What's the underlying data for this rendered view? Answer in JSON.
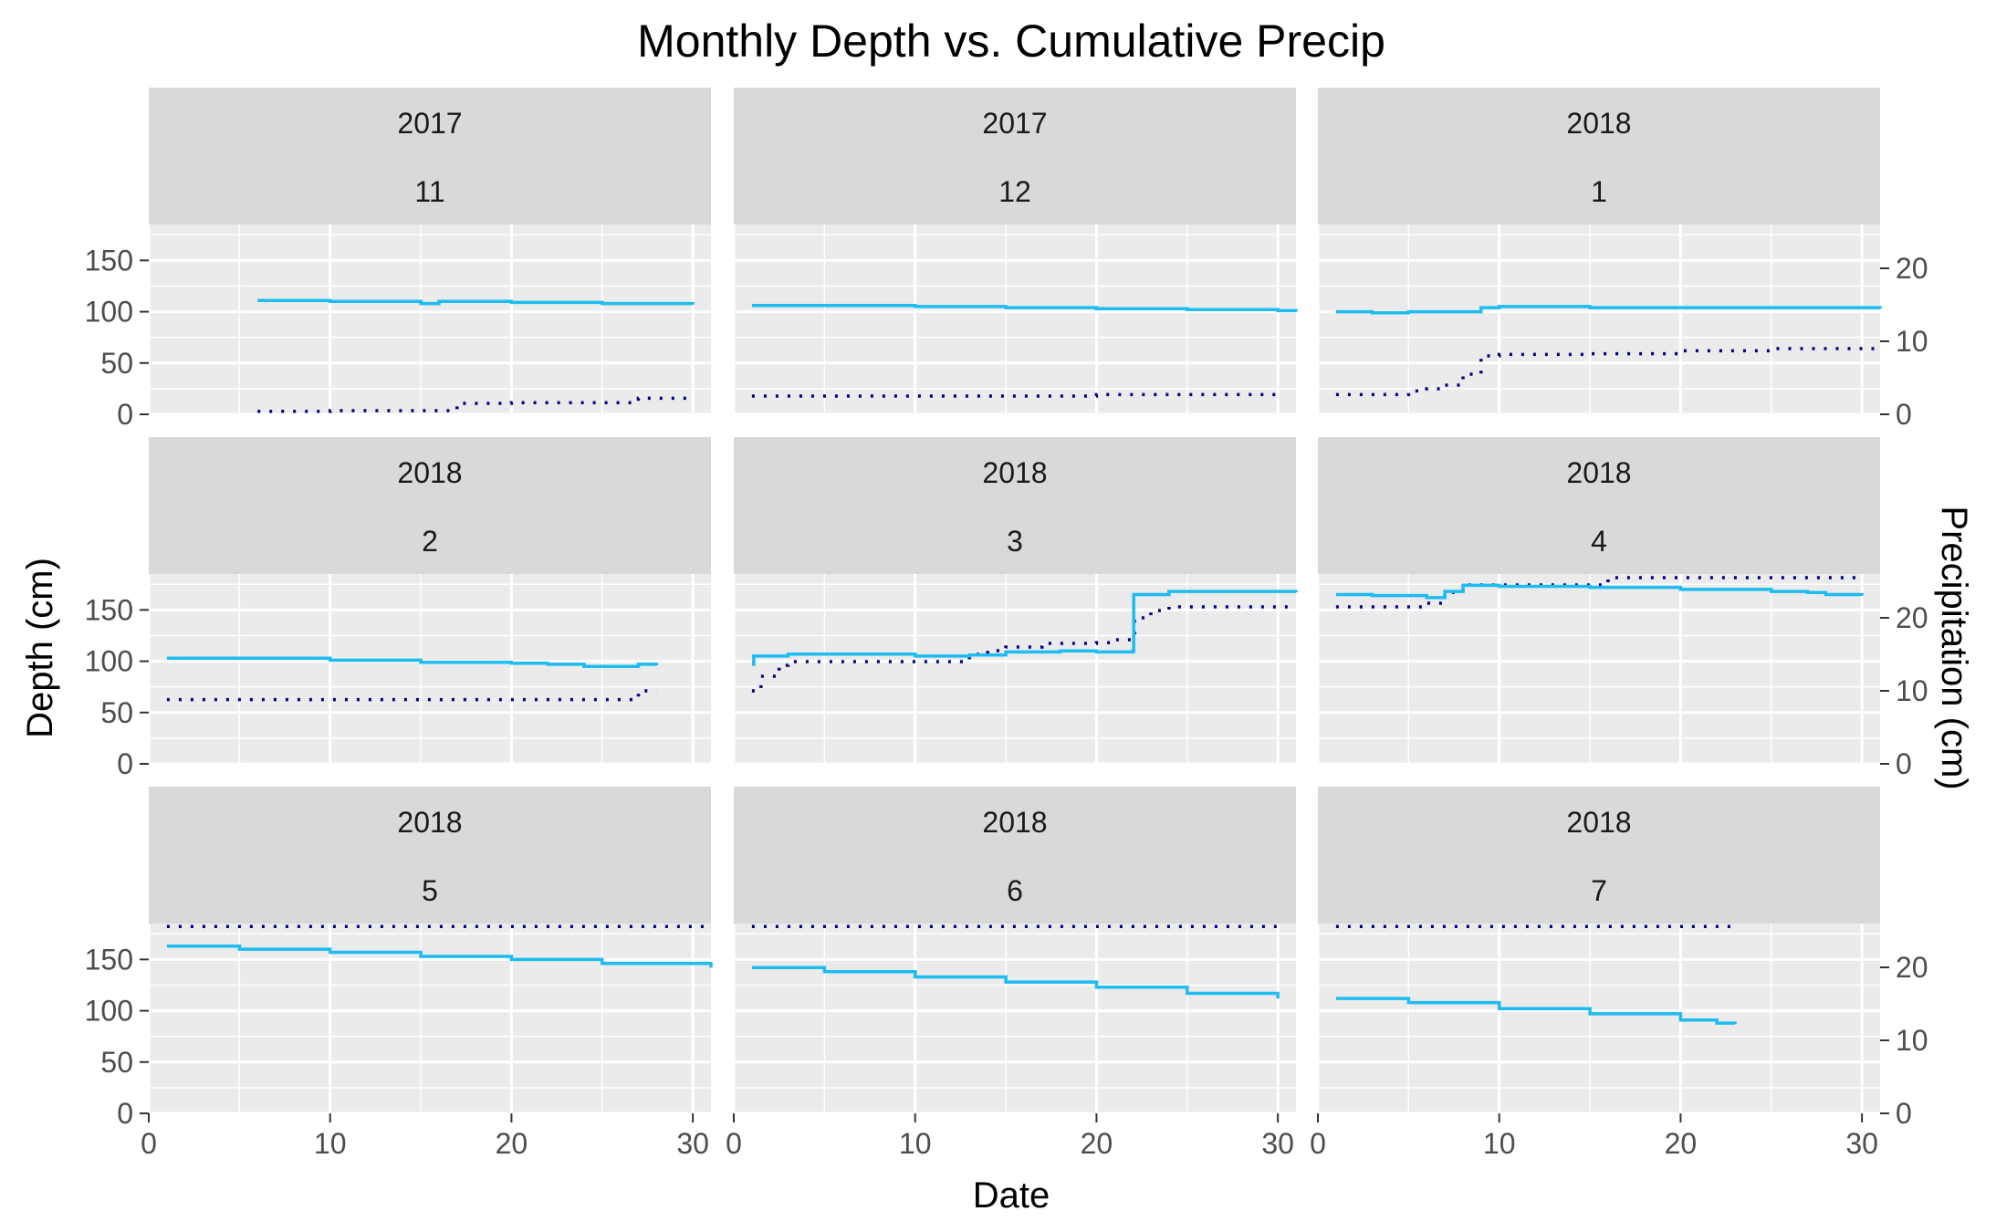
{
  "chart_data": {
    "type": "line",
    "title": "Monthly Depth vs. Cumulative Precip",
    "xlabel": "Date",
    "ylabel": "Depth (cm)",
    "y2label": "Precipitation (cm)",
    "xlim": [
      0,
      31
    ],
    "ylim": [
      0,
      185
    ],
    "y2lim": [
      0,
      26
    ],
    "x_ticks": [
      0,
      10,
      20,
      30
    ],
    "y_ticks": [
      0,
      50,
      100,
      150
    ],
    "y2_ticks": [
      0,
      10,
      20
    ],
    "grid": true,
    "colors": {
      "depth": "#1ebcf0",
      "precip": "#000080",
      "panel_bg": "#ebebeb",
      "strip_bg": "#d9d9d9",
      "grid": "#ffffff"
    },
    "panels": [
      {
        "year": "2017",
        "month": "11",
        "depth": [
          [
            6,
            111
          ],
          [
            10,
            110
          ],
          [
            15,
            108
          ],
          [
            16,
            110
          ],
          [
            20,
            109
          ],
          [
            25,
            108
          ],
          [
            27,
            108
          ],
          [
            30,
            107
          ]
        ],
        "precip": [
          [
            6,
            0.4
          ],
          [
            10,
            0.5
          ],
          [
            15,
            0.5
          ],
          [
            17,
            1.5
          ],
          [
            20,
            1.6
          ],
          [
            25,
            1.6
          ],
          [
            27,
            2.2
          ],
          [
            30,
            2.3
          ]
        ]
      },
      {
        "year": "2017",
        "month": "12",
        "depth": [
          [
            1,
            106
          ],
          [
            5,
            106
          ],
          [
            10,
            105
          ],
          [
            15,
            104
          ],
          [
            20,
            103
          ],
          [
            25,
            102
          ],
          [
            30,
            101
          ],
          [
            31,
            100
          ]
        ],
        "precip": [
          [
            1,
            2.5
          ],
          [
            10,
            2.5
          ],
          [
            19,
            2.5
          ],
          [
            20,
            2.7
          ],
          [
            25,
            2.7
          ],
          [
            30,
            2.7
          ]
        ]
      },
      {
        "year": "2018",
        "month": "1",
        "depth": [
          [
            1,
            100
          ],
          [
            3,
            99
          ],
          [
            5,
            100
          ],
          [
            8,
            100
          ],
          [
            9,
            104
          ],
          [
            10,
            105
          ],
          [
            15,
            104
          ],
          [
            20,
            104
          ],
          [
            25,
            104
          ],
          [
            31,
            103
          ]
        ],
        "precip": [
          [
            1,
            2.7
          ],
          [
            4,
            2.7
          ],
          [
            5,
            3.2
          ],
          [
            6,
            3.5
          ],
          [
            7,
            4.0
          ],
          [
            8,
            5.5
          ],
          [
            9,
            8.0
          ],
          [
            10,
            8.2
          ],
          [
            15,
            8.3
          ],
          [
            20,
            8.7
          ],
          [
            25,
            9.0
          ],
          [
            31,
            9.0
          ]
        ]
      },
      {
        "year": "2018",
        "month": "2",
        "depth": [
          [
            1,
            103
          ],
          [
            5,
            103
          ],
          [
            10,
            101
          ],
          [
            15,
            99
          ],
          [
            20,
            98
          ],
          [
            22,
            97
          ],
          [
            24,
            95
          ],
          [
            26,
            95
          ],
          [
            27,
            97
          ],
          [
            28,
            96
          ]
        ],
        "precip": [
          [
            1,
            8.8
          ],
          [
            10,
            8.8
          ],
          [
            20,
            8.8
          ],
          [
            26,
            8.8
          ],
          [
            27,
            10
          ],
          [
            28,
            10
          ]
        ]
      },
      {
        "year": "2018",
        "month": "3",
        "depth": [
          [
            1,
            97
          ],
          [
            1.1,
            105
          ],
          [
            3,
            107
          ],
          [
            5,
            107
          ],
          [
            10,
            105
          ],
          [
            13,
            106
          ],
          [
            15,
            109
          ],
          [
            18,
            110
          ],
          [
            20,
            109
          ],
          [
            21,
            109
          ],
          [
            22,
            110
          ],
          [
            22.05,
            165
          ],
          [
            24,
            168
          ],
          [
            26,
            168
          ],
          [
            31,
            167
          ]
        ],
        "precip": [
          [
            1,
            10
          ],
          [
            1.5,
            12
          ],
          [
            2.5,
            13.5
          ],
          [
            3,
            14
          ],
          [
            12,
            14
          ],
          [
            13,
            15
          ],
          [
            14,
            15.5
          ],
          [
            15,
            16
          ],
          [
            17,
            16.5
          ],
          [
            20,
            16.6
          ],
          [
            21,
            17
          ],
          [
            22,
            17.5
          ],
          [
            22.1,
            20
          ],
          [
            23,
            21
          ],
          [
            24,
            21.5
          ],
          [
            31,
            21.5
          ]
        ]
      },
      {
        "year": "2018",
        "month": "4",
        "depth": [
          [
            1,
            165
          ],
          [
            3,
            164
          ],
          [
            5,
            164
          ],
          [
            6,
            162
          ],
          [
            7,
            168
          ],
          [
            8,
            174
          ],
          [
            10,
            173
          ],
          [
            15,
            172
          ],
          [
            20,
            170
          ],
          [
            25,
            168
          ],
          [
            27,
            167
          ],
          [
            28,
            165
          ],
          [
            30,
            164
          ]
        ],
        "precip": [
          [
            1,
            21.5
          ],
          [
            5,
            21.5
          ],
          [
            6,
            22
          ],
          [
            7,
            23.5
          ],
          [
            8,
            24.5
          ],
          [
            15,
            24.5
          ],
          [
            16,
            25.5
          ],
          [
            30,
            25.5
          ]
        ]
      },
      {
        "year": "2018",
        "month": "5",
        "depth": [
          [
            1,
            163
          ],
          [
            5,
            160
          ],
          [
            10,
            157
          ],
          [
            15,
            153
          ],
          [
            20,
            150
          ],
          [
            25,
            146
          ],
          [
            31,
            142
          ]
        ],
        "precip": [
          [
            1,
            25.6
          ],
          [
            31,
            25.6
          ]
        ]
      },
      {
        "year": "2018",
        "month": "6",
        "depth": [
          [
            1,
            142
          ],
          [
            5,
            138
          ],
          [
            10,
            133
          ],
          [
            15,
            128
          ],
          [
            20,
            123
          ],
          [
            25,
            117
          ],
          [
            30,
            112
          ]
        ],
        "precip": [
          [
            1,
            25.6
          ],
          [
            30,
            25.6
          ]
        ]
      },
      {
        "year": "2018",
        "month": "7",
        "depth": [
          [
            1,
            112
          ],
          [
            5,
            108
          ],
          [
            10,
            102
          ],
          [
            15,
            97
          ],
          [
            20,
            91
          ],
          [
            22,
            88
          ],
          [
            23,
            87
          ]
        ],
        "precip": [
          [
            1,
            25.6
          ],
          [
            23,
            25.6
          ]
        ]
      }
    ]
  }
}
